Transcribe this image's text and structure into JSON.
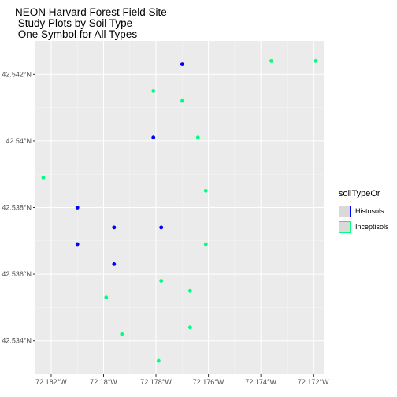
{
  "chart_data": {
    "type": "scatter",
    "title_lines": [
      "NEON Harvard Forest Field Site",
      " Study Plots by Soil Type",
      " One Symbol for All Types"
    ],
    "xlabel": "",
    "ylabel": "",
    "x_ticks": [
      -72.182,
      -72.18,
      -72.178,
      -72.176,
      -72.174,
      -72.172
    ],
    "x_tick_labels": [
      "72.182°W",
      "72.18°W",
      "72.178°W",
      "72.176°W",
      "72.174°W",
      "72.172°W"
    ],
    "y_ticks": [
      42.534,
      42.536,
      42.538,
      42.54,
      42.542
    ],
    "y_tick_labels": [
      "42.534°N",
      "42.536°N",
      "42.538°N",
      "42.54°N",
      "42.542°N"
    ],
    "xlim": [
      -72.1826,
      -72.1716
    ],
    "ylim": [
      42.533,
      42.543
    ],
    "grid": true,
    "legend_placement": "right",
    "legend": {
      "title": "soilTypeOr",
      "items": [
        {
          "label": "Histosols",
          "color": "#0000ff"
        },
        {
          "label": "Inceptisols",
          "color": "#00ff80"
        }
      ]
    },
    "series": [
      {
        "name": "Histosols",
        "color": "#0000ff",
        "points": [
          [
            -72.177,
            42.5423
          ],
          [
            -72.1781,
            42.5401
          ],
          [
            -72.181,
            42.538
          ],
          [
            -72.1796,
            42.5374
          ],
          [
            -72.1778,
            42.5374
          ],
          [
            -72.181,
            42.5369
          ],
          [
            -72.1796,
            42.5363
          ]
        ]
      },
      {
        "name": "Inceptisols",
        "color": "#00ff80",
        "points": [
          [
            -72.1736,
            42.5424
          ],
          [
            -72.1719,
            42.5424
          ],
          [
            -72.1781,
            42.5415
          ],
          [
            -72.177,
            42.5412
          ],
          [
            -72.1764,
            42.5401
          ],
          [
            -72.1823,
            42.5389
          ],
          [
            -72.1761,
            42.5385
          ],
          [
            -72.1761,
            42.5369
          ],
          [
            -72.1778,
            42.5358
          ],
          [
            -72.1767,
            42.5355
          ],
          [
            -72.1799,
            42.5353
          ],
          [
            -72.1767,
            42.5344
          ],
          [
            -72.1793,
            42.5342
          ],
          [
            -72.1779,
            42.5334
          ]
        ]
      }
    ]
  }
}
